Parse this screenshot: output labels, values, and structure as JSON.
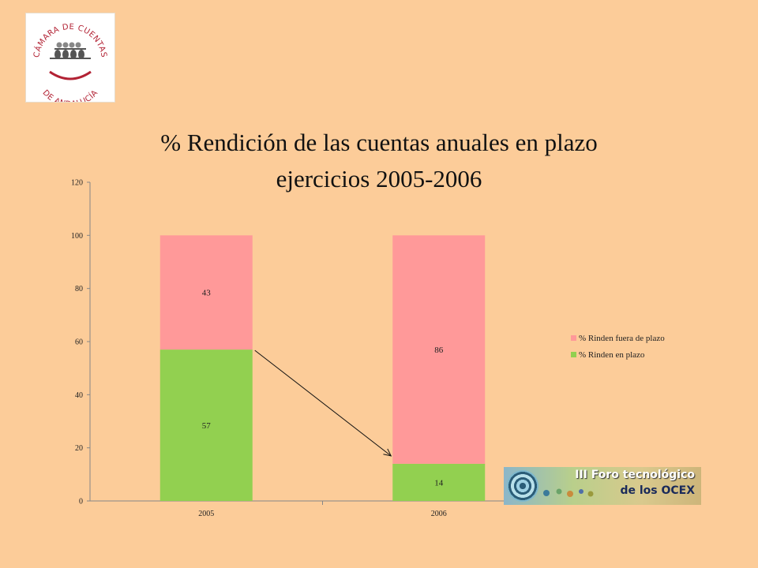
{
  "logo": {
    "text_top": "CÁMARA DE CUENTAS",
    "text_bottom": "DE ANDALUCÍA",
    "colors": {
      "primary": "#B22234",
      "figures": "#555555"
    }
  },
  "title_lines": [
    "% Rendición de las cuentas anuales en plazo",
    "ejercicios 2005-2006"
  ],
  "chart_data": {
    "type": "bar",
    "stacked": true,
    "categories": [
      "2005",
      "2006"
    ],
    "series": [
      {
        "name": "% Rinden en plazo",
        "values": [
          57,
          14
        ],
        "color": "#92D050"
      },
      {
        "name": "% Rinden fuera de plazo",
        "values": [
          43,
          86
        ],
        "color": "#FF9999"
      }
    ],
    "ylim": [
      0,
      120
    ],
    "yticks": [
      "0",
      "20",
      "40",
      "60",
      "80",
      "100",
      "120"
    ],
    "grid": false,
    "legend": "right",
    "annotation": "arrow from top of 2005 green segment to top of 2006 green segment"
  },
  "forum_logo": {
    "line1": "III Foro tecnológico",
    "line2": "de los OCEX"
  }
}
